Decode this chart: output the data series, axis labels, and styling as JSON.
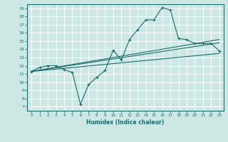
{
  "xlabel": "Humidex (Indice chaleur)",
  "ylabel": "",
  "bg_color": "#cde8e4",
  "grid_color": "#ffffff",
  "line_color": "#1a6b6b",
  "xlim": [
    -0.5,
    23.5
  ],
  "ylim": [
    6.5,
    19.5
  ],
  "xticks": [
    0,
    1,
    2,
    3,
    4,
    5,
    6,
    7,
    8,
    9,
    10,
    11,
    12,
    13,
    14,
    15,
    16,
    17,
    18,
    19,
    20,
    21,
    22,
    23
  ],
  "yticks": [
    7,
    8,
    9,
    10,
    11,
    12,
    13,
    14,
    15,
    16,
    17,
    18,
    19
  ],
  "line1_x": [
    0,
    1,
    2,
    3,
    4,
    5,
    6,
    7,
    8,
    9,
    10,
    11,
    12,
    13,
    14,
    15,
    16,
    17,
    18,
    19,
    20,
    21,
    22,
    23
  ],
  "line1_y": [
    11.3,
    11.8,
    12.0,
    12.0,
    11.5,
    11.2,
    7.3,
    9.7,
    10.6,
    11.4,
    13.9,
    12.7,
    15.2,
    16.4,
    17.6,
    17.6,
    19.1,
    18.8,
    15.3,
    15.2,
    14.7,
    14.7,
    14.7,
    13.8
  ],
  "line2_x": [
    0,
    23
  ],
  "line2_y": [
    11.3,
    14.8
  ],
  "line3_x": [
    0,
    23
  ],
  "line3_y": [
    11.3,
    13.5
  ],
  "line4_x": [
    0,
    23
  ],
  "line4_y": [
    11.3,
    15.2
  ]
}
